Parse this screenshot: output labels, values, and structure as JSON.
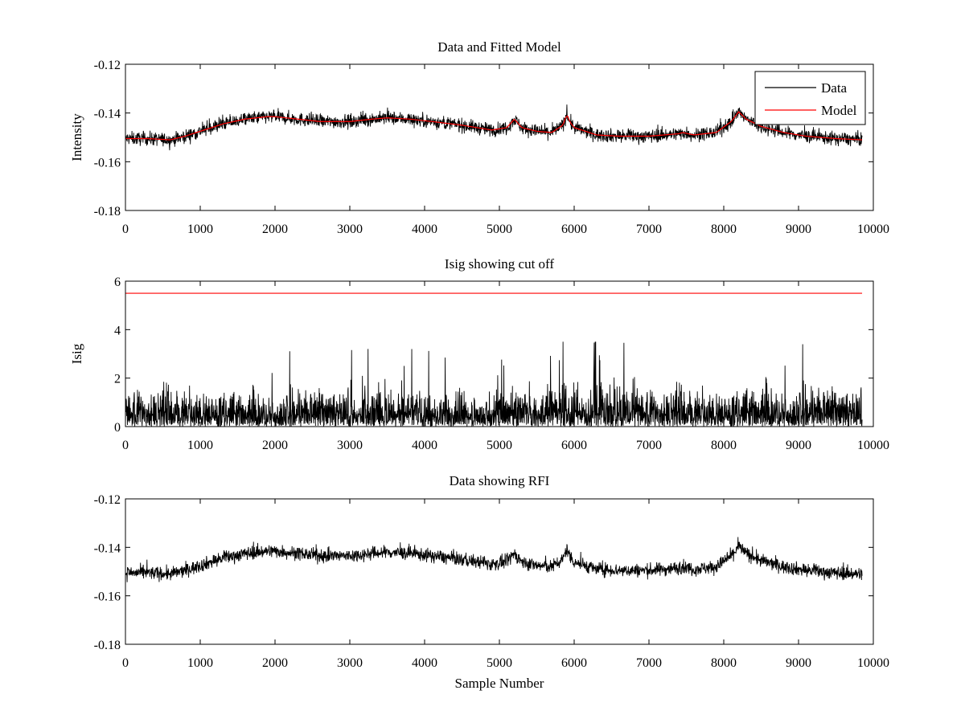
{
  "chart_data": [
    {
      "type": "line",
      "title": "Data and Fitted Model",
      "xlabel": "",
      "ylabel": "Intensity",
      "xlim": [
        0,
        10000
      ],
      "ylim": [
        -0.18,
        -0.12
      ],
      "xticks": [
        0,
        1000,
        2000,
        3000,
        4000,
        5000,
        6000,
        7000,
        8000,
        9000,
        10000
      ],
      "xtick_labels": [
        "0",
        "1000",
        "2000",
        "3000",
        "4000",
        "5000",
        "6000",
        "7000",
        "8000",
        "9000",
        "10000"
      ],
      "yticks": [
        -0.12,
        -0.14,
        -0.16,
        -0.18
      ],
      "ytick_labels": [
        "-0.12",
        "-0.14",
        "-0.16",
        "-0.18"
      ],
      "legend": {
        "position": "top-right"
      },
      "series": [
        {
          "name": "Data",
          "color": "#000000",
          "style": "noisy",
          "x": [
            0,
            300,
            600,
            800,
            1000,
            1300,
            1600,
            1900,
            2000,
            2300,
            2600,
            3000,
            3300,
            3500,
            3800,
            4100,
            4500,
            4900,
            5100,
            5200,
            5300,
            5500,
            5700,
            5850,
            5900,
            5950,
            6000,
            6300,
            6600,
            7000,
            7400,
            7450,
            7600,
            7900,
            8100,
            8200,
            8300,
            8500,
            8800,
            9100,
            9500,
            9850
          ],
          "y": [
            -0.1505,
            -0.1505,
            -0.151,
            -0.1495,
            -0.1475,
            -0.1445,
            -0.1425,
            -0.1415,
            -0.1415,
            -0.1425,
            -0.1435,
            -0.1435,
            -0.1425,
            -0.142,
            -0.1425,
            -0.1435,
            -0.145,
            -0.147,
            -0.146,
            -0.1425,
            -0.146,
            -0.1475,
            -0.148,
            -0.145,
            -0.1405,
            -0.144,
            -0.146,
            -0.149,
            -0.1495,
            -0.1495,
            -0.1485,
            -0.148,
            -0.149,
            -0.148,
            -0.1435,
            -0.1395,
            -0.1425,
            -0.1455,
            -0.148,
            -0.1495,
            -0.1505,
            -0.151
          ],
          "noise": 0.0035
        },
        {
          "name": "Model",
          "color": "#ff0000",
          "style": "smooth",
          "x": [
            0,
            300,
            600,
            800,
            1000,
            1300,
            1600,
            1900,
            2000,
            2300,
            2600,
            3000,
            3300,
            3500,
            3800,
            4100,
            4500,
            4900,
            5100,
            5200,
            5300,
            5500,
            5700,
            5850,
            5900,
            5950,
            6000,
            6300,
            6600,
            7000,
            7400,
            7450,
            7600,
            7900,
            8100,
            8200,
            8300,
            8500,
            8800,
            9100,
            9500,
            9850
          ],
          "y": [
            -0.1505,
            -0.1505,
            -0.151,
            -0.1495,
            -0.1475,
            -0.1445,
            -0.1425,
            -0.1415,
            -0.1415,
            -0.1425,
            -0.1435,
            -0.1435,
            -0.1425,
            -0.142,
            -0.1425,
            -0.1435,
            -0.145,
            -0.147,
            -0.146,
            -0.1425,
            -0.146,
            -0.1475,
            -0.148,
            -0.145,
            -0.1405,
            -0.144,
            -0.146,
            -0.149,
            -0.1495,
            -0.1495,
            -0.1485,
            -0.148,
            -0.149,
            -0.148,
            -0.1435,
            -0.1395,
            -0.1425,
            -0.1455,
            -0.148,
            -0.1495,
            -0.1505,
            -0.151
          ]
        }
      ]
    },
    {
      "type": "line",
      "title": "Isig showing cut off",
      "xlabel": "",
      "ylabel": "Isig",
      "xlim": [
        0,
        10000
      ],
      "ylim": [
        0,
        6
      ],
      "xticks": [
        0,
        1000,
        2000,
        3000,
        4000,
        5000,
        6000,
        7000,
        8000,
        9000,
        10000
      ],
      "xtick_labels": [
        "0",
        "1000",
        "2000",
        "3000",
        "4000",
        "5000",
        "6000",
        "7000",
        "8000",
        "9000",
        "10000"
      ],
      "yticks": [
        0,
        2,
        4,
        6
      ],
      "ytick_labels": [
        "0",
        "2",
        "4",
        "6"
      ],
      "series": [
        {
          "color": "#000000",
          "style": "abs-noise",
          "x": [
            0,
            1000,
            2000,
            3000,
            3400,
            4000,
            5000,
            5600,
            6000,
            6500,
            7000,
            8000,
            8200,
            8500,
            9000,
            9850
          ],
          "y": [
            1.0,
            1.0,
            1.0,
            1.0,
            1.05,
            0.95,
            0.95,
            1.2,
            1.2,
            1.15,
            1.0,
            1.0,
            1.05,
            1.2,
            1.1,
            1.0
          ],
          "max": 3.5
        },
        {
          "color": "#ff0000",
          "style": "smooth",
          "x": [
            0,
            9850
          ],
          "y": [
            5.5,
            5.5
          ]
        }
      ]
    },
    {
      "type": "line",
      "title": "Data showing RFI",
      "xlabel": "Sample Number",
      "ylabel": "",
      "xlim": [
        0,
        10000
      ],
      "ylim": [
        -0.18,
        -0.12
      ],
      "xticks": [
        0,
        1000,
        2000,
        3000,
        4000,
        5000,
        6000,
        7000,
        8000,
        9000,
        10000
      ],
      "xtick_labels": [
        "0",
        "1000",
        "2000",
        "3000",
        "4000",
        "5000",
        "6000",
        "7000",
        "8000",
        "9000",
        "10000"
      ],
      "yticks": [
        -0.12,
        -0.14,
        -0.16,
        -0.18
      ],
      "ytick_labels": [
        "-0.12",
        "-0.14",
        "-0.16",
        "-0.18"
      ],
      "series": [
        {
          "color": "#000000",
          "style": "noisy",
          "x": [
            0,
            300,
            600,
            800,
            1000,
            1300,
            1600,
            1900,
            2000,
            2300,
            2600,
            3000,
            3300,
            3500,
            3800,
            4100,
            4500,
            4900,
            5100,
            5200,
            5300,
            5500,
            5700,
            5850,
            5900,
            5950,
            6000,
            6300,
            6600,
            7000,
            7400,
            7450,
            7600,
            7900,
            8100,
            8200,
            8300,
            8500,
            8800,
            9100,
            9500,
            9850
          ],
          "y": [
            -0.1505,
            -0.1505,
            -0.151,
            -0.1495,
            -0.1475,
            -0.1445,
            -0.1425,
            -0.1415,
            -0.1415,
            -0.1425,
            -0.1435,
            -0.1435,
            -0.1425,
            -0.142,
            -0.1425,
            -0.1435,
            -0.145,
            -0.147,
            -0.146,
            -0.1425,
            -0.146,
            -0.1475,
            -0.148,
            -0.145,
            -0.1405,
            -0.144,
            -0.146,
            -0.149,
            -0.1495,
            -0.1495,
            -0.1485,
            -0.148,
            -0.149,
            -0.148,
            -0.1435,
            -0.1395,
            -0.1425,
            -0.1455,
            -0.148,
            -0.1495,
            -0.1505,
            -0.151
          ],
          "noise": 0.0035
        }
      ]
    }
  ]
}
